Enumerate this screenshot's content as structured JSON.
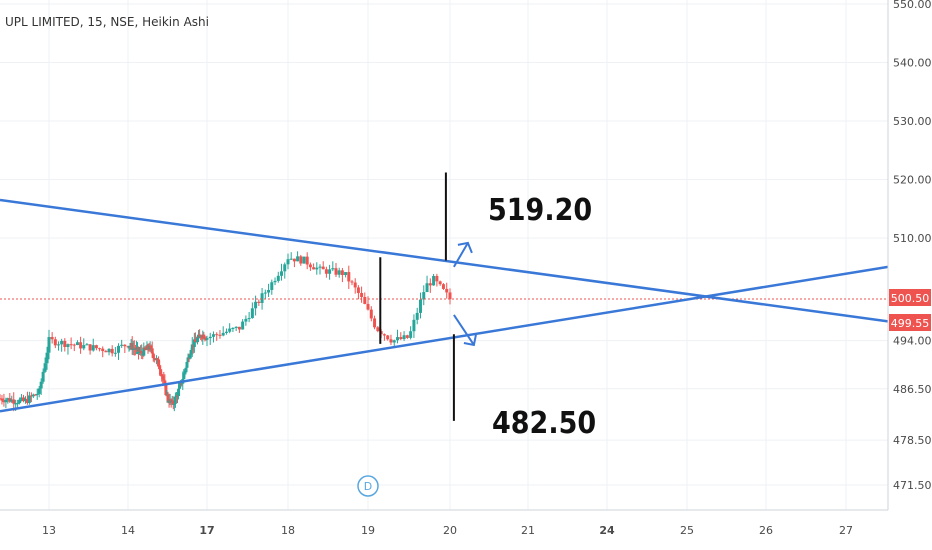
{
  "header": {
    "title": "UPL LIMITED, 15, NSE, Heikin Ashi"
  },
  "colors": {
    "up": "#26a69a",
    "down": "#ef5350",
    "trendline": "#3a78d8",
    "price_line": "#ef5350",
    "grid": "#eef1f5",
    "axis_text": "#4a4a4a"
  },
  "annotations": {
    "target_up": "519.20",
    "target_down": "482.50",
    "dividend_marker": "D"
  },
  "price_tags": {
    "last": "500.50",
    "prev": "499.55"
  },
  "chart_data": {
    "type": "candlestick",
    "title": "UPL LIMITED, 15, NSE, Heikin Ashi",
    "ylim": [
      466.5,
      555
    ],
    "y_ticks": [
      "550.00",
      "540.00",
      "530.00",
      "520.00",
      "510.00",
      "494.00",
      "486.50",
      "478.50",
      "471.50"
    ],
    "y_tick_values": [
      550,
      540,
      530,
      520,
      510,
      494,
      486.5,
      478.5,
      471.5
    ],
    "x_ticks": [
      "13",
      "14",
      "17",
      "18",
      "19",
      "20",
      "21",
      "24",
      "25",
      "26",
      "27"
    ],
    "x_ticks_bold": [
      "17",
      "24"
    ],
    "upper_trendline": [
      [
        12.0,
        516.5
      ],
      [
        27.8,
        497.0
      ]
    ],
    "lower_trendline": [
      [
        12.0,
        483.0
      ],
      [
        27.8,
        505.5
      ]
    ],
    "current_price": 500.5,
    "secondary_price": 499.55,
    "target_up": 519.2,
    "target_down": 482.5,
    "anchors": [
      [
        12.0,
        485.0,
        1
      ],
      [
        12.5,
        484.5,
        0
      ],
      [
        12.8,
        486.0,
        1
      ],
      [
        13.0,
        494.0,
        1
      ],
      [
        13.5,
        493.0,
        0
      ],
      [
        13.8,
        492.5,
        1
      ],
      [
        14.0,
        493.5,
        1
      ],
      [
        14.5,
        492.0,
        0
      ],
      [
        14.8,
        493.0,
        1
      ],
      [
        15.2,
        490.0,
        0
      ],
      [
        15.5,
        485.0,
        0
      ],
      [
        15.7,
        484.0,
        1
      ],
      [
        16.0,
        487.0,
        1
      ],
      [
        16.4,
        493.0,
        1
      ],
      [
        16.8,
        495.0,
        1
      ],
      [
        17.0,
        494.5,
        0
      ],
      [
        17.4,
        496.0,
        1
      ],
      [
        17.8,
        503.0,
        1
      ],
      [
        18.0,
        507.0,
        1
      ],
      [
        18.2,
        506.5,
        0
      ],
      [
        18.4,
        505.0,
        1
      ],
      [
        18.7,
        504.5,
        0
      ],
      [
        18.9,
        501.0,
        0
      ],
      [
        19.1,
        496.0,
        0
      ],
      [
        19.3,
        494.0,
        0
      ],
      [
        19.5,
        494.5,
        1
      ],
      [
        19.7,
        502.5,
        1
      ],
      [
        19.8,
        503.5,
        1
      ],
      [
        19.9,
        502.0,
        0
      ],
      [
        20.0,
        500.5,
        0
      ]
    ]
  }
}
